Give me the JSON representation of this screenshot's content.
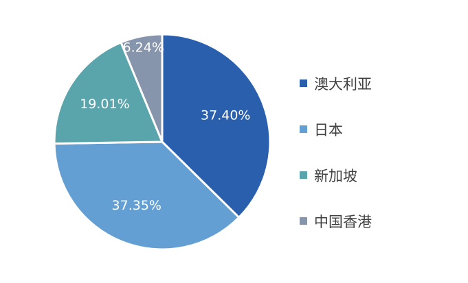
{
  "chart_data": {
    "type": "pie",
    "title": "",
    "legend_position": "right",
    "start_angle_deg": 0,
    "direction": "clockwise",
    "slices": [
      {
        "name": "澳大利亚",
        "value": 37.4,
        "label": "37.40%",
        "color": "#2a5fae"
      },
      {
        "name": "日本",
        "value": 37.35,
        "label": "37.35%",
        "color": "#639fd3"
      },
      {
        "name": "新加坡",
        "value": 19.01,
        "label": "19.01%",
        "color": "#5aa4ab"
      },
      {
        "name": "中国香港",
        "value": 6.24,
        "label": "6.24%",
        "color": "#8795ac"
      }
    ]
  }
}
